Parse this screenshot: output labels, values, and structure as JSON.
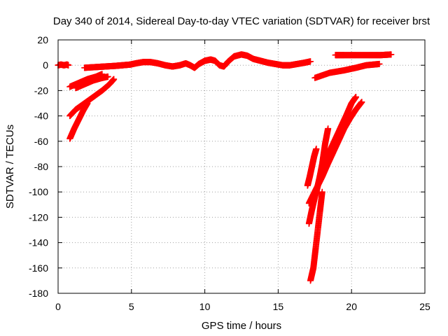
{
  "chart_data": {
    "type": "scatter",
    "title": "Day 340 of 2014, Sidereal Day-to-day VTEC variation (SDTVAR) for receiver brst",
    "xlabel": "GPS time / hours",
    "ylabel": "SDTVAR / TECUs",
    "xlim": [
      0,
      25
    ],
    "ylim": [
      -180,
      20
    ],
    "xticks": [
      0,
      5,
      10,
      15,
      20,
      25
    ],
    "yticks": [
      -180,
      -160,
      -140,
      -120,
      -100,
      -80,
      -60,
      -40,
      -20,
      0,
      20
    ],
    "grid": true,
    "marker": "+",
    "color": "#ff0000",
    "series": [
      {
        "x": [
          0.0,
          0.2,
          0.4,
          0.6,
          0.7
        ],
        "y": [
          0,
          0.5,
          0,
          0.5,
          0
        ]
      },
      {
        "x": [
          1.8,
          2.5,
          3.2,
          3.9,
          4.4,
          4.9,
          5.3,
          5.8,
          6.3,
          6.8,
          7.3,
          7.8,
          8.3,
          8.7,
          9.0,
          9.3,
          9.6,
          10.0,
          10.4,
          10.7,
          11.0,
          11.3,
          11.6,
          12.0,
          12.5,
          12.9,
          13.3,
          13.8,
          14.3,
          14.8,
          15.3,
          15.8,
          16.3,
          16.8,
          17.2
        ],
        "y": [
          -2,
          -1.5,
          -1,
          -0.5,
          0,
          0.5,
          1.5,
          2.5,
          2.5,
          1.5,
          0,
          -1,
          0,
          1.5,
          0,
          -2,
          1,
          3.5,
          4.5,
          3.5,
          0,
          -1,
          3,
          7,
          8.5,
          7.5,
          5,
          3.5,
          2,
          1,
          0,
          0,
          1,
          2,
          3
        ]
      },
      {
        "x": [
          0.8,
          1.4,
          2.0,
          2.6,
          3.0
        ],
        "y": [
          -17,
          -14,
          -11,
          -9,
          -7
        ]
      },
      {
        "x": [
          1.2,
          1.8,
          2.4,
          3.0,
          3.4
        ],
        "y": [
          -18,
          -15,
          -12,
          -10,
          -9
        ]
      },
      {
        "x": [
          0.8,
          1.2,
          1.8,
          2.4,
          3.0,
          3.5,
          3.8
        ],
        "y": [
          -40,
          -35,
          -30,
          -25,
          -20,
          -15,
          -11
        ]
      },
      {
        "x": [
          0.8,
          1.1,
          1.4,
          1.7,
          2.0
        ],
        "y": [
          -58,
          -50,
          -43,
          -36,
          -30
        ]
      },
      {
        "x": [
          18.9,
          19.5,
          20.3,
          21.2,
          22.0,
          22.7
        ],
        "y": [
          8,
          8,
          8,
          8,
          8,
          8.5
        ]
      },
      {
        "x": [
          17.5,
          18.5,
          19.5,
          20.3,
          21.0,
          21.9
        ],
        "y": [
          -10,
          -6,
          -4,
          -2,
          0,
          1
        ]
      },
      {
        "x": [
          17.1,
          17.3,
          17.5,
          17.7,
          17.9,
          18.2,
          18.5,
          18.9,
          19.3,
          19.7,
          20.0,
          20.3
        ],
        "y": [
          -125,
          -114,
          -104,
          -95,
          -85,
          -76,
          -68,
          -58,
          -48,
          -38,
          -30,
          -25
        ]
      },
      {
        "x": [
          17.1,
          17.4,
          17.7,
          18.0,
          18.3,
          18.7,
          19.1,
          19.5,
          19.9,
          20.3,
          20.7
        ],
        "y": [
          -109,
          -102,
          -95,
          -88,
          -80,
          -70,
          -60,
          -50,
          -42,
          -35,
          -29
        ]
      },
      {
        "x": [
          17.0,
          17.15,
          17.3,
          17.45,
          17.6
        ],
        "y": [
          -95,
          -88,
          -80,
          -72,
          -66
        ]
      },
      {
        "x": [
          17.6,
          17.8,
          18.0,
          18.2,
          18.4
        ],
        "y": [
          -100,
          -90,
          -78,
          -62,
          -50
        ]
      },
      {
        "x": [
          17.2,
          17.4,
          17.6,
          17.8,
          18.0
        ],
        "y": [
          -170,
          -160,
          -140,
          -120,
          -100
        ]
      }
    ]
  }
}
